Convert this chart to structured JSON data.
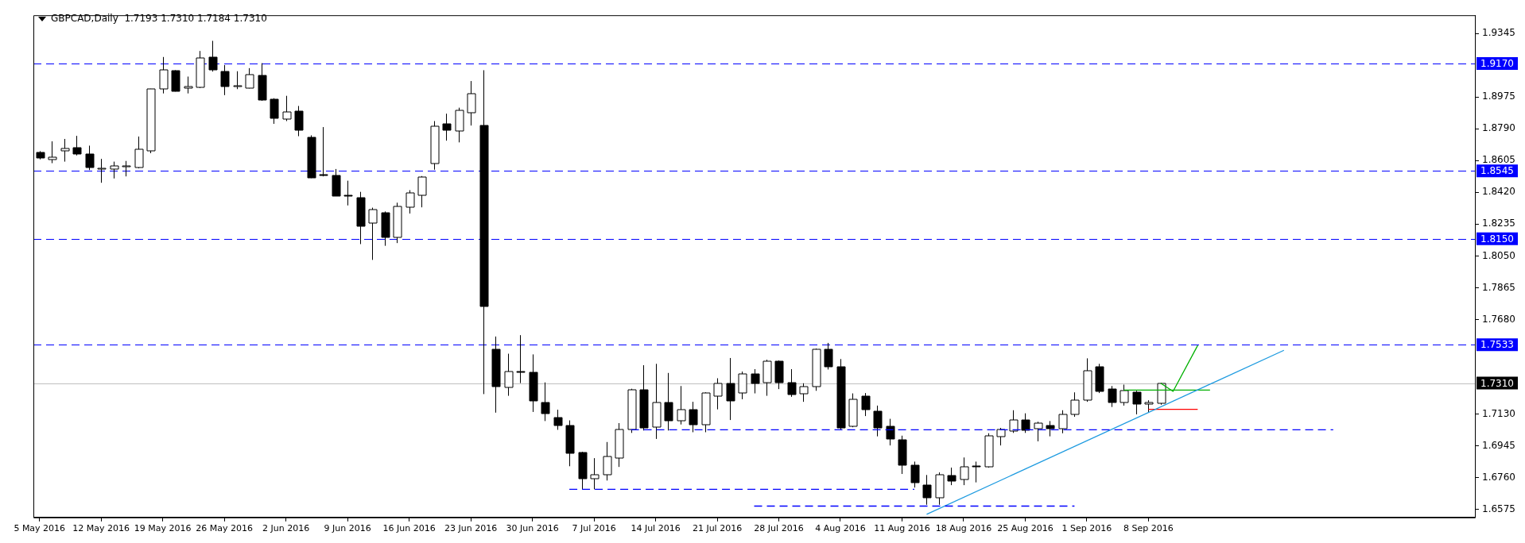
{
  "chart_data": {
    "type": "candlestick",
    "title": "GBPCAD,Daily  1.7193 1.7310 1.7184 1.7310",
    "color": "#000000",
    "categories": [
      "5 May 2016",
      null,
      null,
      null,
      null,
      "12 May 2016",
      null,
      null,
      null,
      null,
      "19 May 2016",
      null,
      null,
      null,
      null,
      "26 May 2016",
      null,
      null,
      null,
      null,
      "2 Jun 2016",
      null,
      null,
      null,
      null,
      "9 Jun 2016",
      null,
      null,
      null,
      null,
      "16 Jun 2016",
      null,
      null,
      null,
      null,
      "23 Jun 2016",
      null,
      null,
      null,
      null,
      "30 Jun 2016",
      null,
      null,
      null,
      null,
      "7 Jul 2016",
      null,
      null,
      null,
      null,
      "14 Jul 2016",
      null,
      null,
      null,
      null,
      "21 Jul 2016",
      null,
      null,
      null,
      null,
      "28 Jul 2016",
      null,
      null,
      null,
      null,
      "4 Aug 2016",
      null,
      null,
      null,
      null,
      "11 Aug 2016",
      null,
      null,
      null,
      null,
      "18 Aug 2016",
      null,
      null,
      null,
      null,
      "25 Aug 2016",
      null,
      null,
      null,
      null,
      "1 Sep 2016",
      null,
      null,
      null,
      null,
      "8 Sep 2016",
      null,
      null,
      null,
      null,
      null,
      null,
      null,
      null,
      null,
      null,
      null,
      null,
      null,
      null,
      null,
      null,
      null,
      null,
      null,
      null,
      null,
      null,
      null,
      null,
      null,
      null
    ],
    "ohlc": [
      [
        1.8652,
        1.866,
        1.8612,
        1.8619
      ],
      [
        1.8613,
        1.8717,
        1.859,
        1.8625
      ],
      [
        1.866,
        1.8731,
        1.8599,
        1.8676
      ],
      [
        1.8678,
        1.8749,
        1.8635,
        1.8643
      ],
      [
        1.8645,
        1.8692,
        1.855,
        1.8566
      ],
      [
        1.8558,
        1.8615,
        1.8476,
        1.856
      ],
      [
        1.8558,
        1.8599,
        1.8501,
        1.8576
      ],
      [
        1.857,
        1.8603,
        1.8513,
        1.8572
      ],
      [
        1.8566,
        1.8745,
        1.856,
        1.8672
      ],
      [
        1.8662,
        1.9023,
        1.8648,
        1.9021
      ],
      [
        1.9023,
        1.9208,
        1.8996,
        1.9133
      ],
      [
        1.9129,
        1.9131,
        1.9007,
        1.9011
      ],
      [
        1.9025,
        1.9094,
        1.8996,
        1.9035
      ],
      [
        1.9031,
        1.9243,
        1.9027,
        1.9202
      ],
      [
        1.9206,
        1.9302,
        1.9123,
        1.9133
      ],
      [
        1.9125,
        1.9161,
        1.8986,
        1.9035
      ],
      [
        1.9037,
        1.9125,
        1.9021,
        1.9039
      ],
      [
        1.9027,
        1.9143,
        1.9025,
        1.9104
      ],
      [
        1.91,
        1.9172,
        1.8953,
        1.8957
      ],
      [
        1.896,
        1.8968,
        1.8819,
        1.8847
      ],
      [
        1.8845,
        1.8982,
        1.8835,
        1.8888
      ],
      [
        1.8894,
        1.8923,
        1.8747,
        1.8784
      ],
      [
        1.8741,
        1.8752,
        1.8503,
        1.8505
      ],
      [
        1.8523,
        1.88,
        1.8513,
        1.8519
      ],
      [
        1.8519,
        1.8556,
        1.8399,
        1.8401
      ],
      [
        1.8405,
        1.8488,
        1.8344,
        1.8401
      ],
      [
        1.8388,
        1.8423,
        1.8119,
        1.8221
      ],
      [
        1.8244,
        1.8331,
        1.8027,
        1.8321
      ],
      [
        1.8303,
        1.8309,
        1.8109,
        1.8162
      ],
      [
        1.8158,
        1.836,
        1.8125,
        1.834
      ],
      [
        1.8333,
        1.8433,
        1.8297,
        1.8415
      ],
      [
        1.8405,
        1.8515,
        1.8333,
        1.8511
      ],
      [
        1.859,
        1.8835,
        1.8552,
        1.8805
      ],
      [
        1.8819,
        1.8878,
        1.8721,
        1.878
      ],
      [
        1.8776,
        1.8913,
        1.8711,
        1.8898
      ],
      [
        1.8884,
        1.9068,
        1.8809,
        1.8996
      ],
      [
        1.8811,
        1.9131,
        1.7246,
        1.7758
      ],
      [
        1.7507,
        1.7581,
        1.7138,
        1.7291
      ],
      [
        1.7281,
        1.7481,
        1.7236,
        1.7375
      ],
      [
        1.7377,
        1.7589,
        1.731,
        1.7375
      ],
      [
        1.7371,
        1.7477,
        1.7142,
        1.7204
      ],
      [
        1.7197,
        1.7314,
        1.7089,
        1.7134
      ],
      [
        1.711,
        1.7155,
        1.7038,
        1.7065
      ],
      [
        1.7061,
        1.7093,
        1.6826,
        1.6898
      ],
      [
        1.6904,
        1.691,
        1.6692,
        1.6751
      ],
      [
        1.6755,
        1.6873,
        1.6692,
        1.6777
      ],
      [
        1.6777,
        1.6967,
        1.6743,
        1.6885
      ],
      [
        1.6877,
        1.7077,
        1.6822,
        1.7042
      ],
      [
        1.704,
        1.7277,
        1.702,
        1.7271
      ],
      [
        1.7269,
        1.7414,
        1.7034,
        1.7049
      ],
      [
        1.7055,
        1.7422,
        1.6985,
        1.7197
      ],
      [
        1.7197,
        1.7369,
        1.7034,
        1.7089
      ],
      [
        1.7089,
        1.7293,
        1.7069,
        1.7155
      ],
      [
        1.7155,
        1.7201,
        1.7024,
        1.7065
      ],
      [
        1.7065,
        1.7256,
        1.7024,
        1.7252
      ],
      [
        1.7236,
        1.7338,
        1.7157,
        1.7309
      ],
      [
        1.7309,
        1.7456,
        1.7095,
        1.7206
      ],
      [
        1.7254,
        1.7377,
        1.7216,
        1.7363
      ],
      [
        1.7363,
        1.7391,
        1.725,
        1.7309
      ],
      [
        1.7312,
        1.7446,
        1.7236,
        1.7436
      ],
      [
        1.7436,
        1.7442,
        1.7275,
        1.7309
      ],
      [
        1.7314,
        1.7391,
        1.723,
        1.7246
      ],
      [
        1.725,
        1.7309,
        1.7201,
        1.7291
      ],
      [
        1.7291,
        1.7511,
        1.7265,
        1.7507
      ],
      [
        1.7507,
        1.7544,
        1.7389,
        1.7407
      ],
      [
        1.7403,
        1.745,
        1.7038,
        1.7049
      ],
      [
        1.7055,
        1.725,
        1.7053,
        1.7214
      ],
      [
        1.7232,
        1.7252,
        1.7118,
        1.7155
      ],
      [
        1.7148,
        1.7179,
        1.7,
        1.7049
      ],
      [
        1.7057,
        1.7102,
        1.6947,
        1.6985
      ],
      [
        1.6981,
        1.7004,
        1.6781,
        1.6832
      ],
      [
        1.6834,
        1.6853,
        1.6702,
        1.6734
      ],
      [
        1.6716,
        1.6775,
        1.6602,
        1.6643
      ],
      [
        1.6639,
        1.679,
        1.6602,
        1.6775
      ],
      [
        1.6773,
        1.6818,
        1.6716,
        1.6741
      ],
      [
        1.6749,
        1.6877,
        1.6716,
        1.6822
      ],
      [
        1.6826,
        1.6853,
        1.6732,
        1.6822
      ],
      [
        1.6822,
        1.7018,
        1.6818,
        1.7002
      ],
      [
        1.6998,
        1.7049,
        1.6947,
        1.7038
      ],
      [
        1.7034,
        1.7152,
        1.702,
        1.7097
      ],
      [
        1.7097,
        1.7134,
        1.702,
        1.7038
      ],
      [
        1.7044,
        1.7085,
        1.6971,
        1.7075
      ],
      [
        1.7061,
        1.7089,
        1.7,
        1.7042
      ],
      [
        1.7044,
        1.7152,
        1.7018,
        1.7128
      ],
      [
        1.7128,
        1.7256,
        1.7114,
        1.721
      ],
      [
        1.7212,
        1.7454,
        1.7201,
        1.7381
      ],
      [
        1.7403,
        1.7422,
        1.7252,
        1.7261
      ],
      [
        1.7277,
        1.7293,
        1.7171,
        1.7197
      ],
      [
        1.7197,
        1.7301,
        1.7179,
        1.7265
      ],
      [
        1.7256,
        1.7265,
        1.7128,
        1.7187
      ],
      [
        1.7185,
        1.721,
        1.7138,
        1.7195
      ],
      [
        1.7193,
        1.731,
        1.7184,
        1.731
      ],
      null,
      null,
      null,
      null,
      null,
      null,
      null,
      null,
      null,
      null,
      null,
      null,
      null,
      null,
      null,
      null,
      null,
      null,
      null,
      null,
      null,
      null,
      null,
      null,
      null
    ],
    "series": [
      {
        "type": "line",
        "color": "#0000ff",
        "line_style": "dashed",
        "values": [
          null,
          null,
          null,
          null,
          null,
          null,
          null,
          null,
          null,
          null,
          null,
          null,
          null,
          null,
          null,
          null,
          null,
          null,
          null,
          null,
          null,
          null,
          null,
          null,
          null,
          null,
          null,
          null,
          null,
          null,
          null,
          null,
          null,
          null,
          null,
          null,
          null,
          null,
          null,
          null,
          null,
          null,
          null,
          null,
          null,
          null,
          null,
          null,
          1.7038,
          null,
          null,
          null,
          null,
          null,
          null,
          null,
          null,
          null,
          null,
          null,
          null,
          null,
          null,
          null,
          null,
          null,
          null,
          null,
          null,
          null,
          null,
          null,
          null,
          null,
          null,
          null,
          null,
          null,
          null,
          null,
          null,
          null,
          null,
          null,
          null,
          null,
          null,
          null,
          null,
          null,
          null,
          null,
          null,
          null,
          null,
          null,
          null,
          null,
          null,
          null,
          null,
          null,
          null,
          null,
          null,
          1.7038,
          null,
          null,
          null,
          null,
          null,
          null,
          null,
          null,
          null,
          null,
          null
        ]
      },
      {
        "type": "line",
        "color": "#0000ff",
        "line_style": "dashed",
        "values": [
          null,
          null,
          null,
          null,
          null,
          null,
          null,
          null,
          null,
          null,
          null,
          null,
          null,
          null,
          null,
          null,
          null,
          null,
          null,
          null,
          null,
          null,
          null,
          null,
          null,
          null,
          null,
          null,
          null,
          null,
          null,
          null,
          null,
          null,
          null,
          null,
          null,
          null,
          null,
          null,
          null,
          null,
          null,
          1.6692,
          null,
          null,
          null,
          null,
          null,
          null,
          null,
          null,
          null,
          null,
          null,
          null,
          null,
          null,
          null,
          null,
          null,
          null,
          null,
          null,
          null,
          null,
          null,
          null,
          null,
          null,
          null,
          1.6692,
          null,
          null,
          null,
          null,
          null,
          null,
          null,
          null,
          null,
          null,
          null,
          null,
          null,
          null,
          null,
          null,
          null,
          null,
          null,
          null,
          null,
          null,
          null,
          null,
          null,
          null,
          null,
          null,
          null,
          null,
          null,
          null,
          null,
          null,
          null,
          null,
          null,
          null,
          null,
          null,
          null,
          null,
          null,
          null,
          null
        ]
      },
      {
        "type": "line",
        "color": "#0000ff",
        "line_style": "dashed",
        "values": [
          null,
          null,
          null,
          null,
          null,
          null,
          null,
          null,
          null,
          null,
          null,
          null,
          null,
          null,
          null,
          null,
          null,
          null,
          null,
          null,
          null,
          null,
          null,
          null,
          null,
          null,
          null,
          null,
          null,
          null,
          null,
          null,
          null,
          null,
          null,
          null,
          null,
          null,
          null,
          null,
          null,
          null,
          null,
          null,
          null,
          null,
          null,
          null,
          null,
          null,
          null,
          null,
          null,
          null,
          null,
          null,
          null,
          null,
          1.6594,
          null,
          null,
          null,
          null,
          null,
          null,
          null,
          null,
          null,
          null,
          null,
          null,
          null,
          null,
          null,
          null,
          null,
          null,
          null,
          null,
          null,
          null,
          null,
          null,
          null,
          1.6594,
          null,
          null,
          null,
          null,
          null,
          null,
          null,
          null,
          null,
          null,
          null,
          null,
          null,
          null,
          null,
          null,
          null,
          null,
          null,
          null,
          null,
          null,
          null,
          null,
          null,
          null,
          null,
          null,
          null,
          null,
          null,
          null
        ]
      },
      {
        "type": "line",
        "color": "#1e9be0",
        "line_style": "solid",
        "values": [
          null,
          null,
          null,
          null,
          null,
          null,
          null,
          null,
          null,
          null,
          null,
          null,
          null,
          null,
          null,
          null,
          null,
          null,
          null,
          null,
          null,
          null,
          null,
          null,
          null,
          null,
          null,
          null,
          null,
          null,
          null,
          null,
          null,
          null,
          null,
          null,
          null,
          null,
          null,
          null,
          null,
          null,
          null,
          null,
          null,
          null,
          null,
          null,
          null,
          null,
          null,
          null,
          null,
          null,
          null,
          null,
          null,
          null,
          null,
          null,
          null,
          null,
          null,
          null,
          null,
          null,
          null,
          null,
          null,
          null,
          null,
          null,
          1.6546,
          null,
          null,
          null,
          null,
          null,
          null,
          null,
          null,
          null,
          null,
          null,
          null,
          null,
          null,
          null,
          null,
          null,
          null,
          null,
          null,
          null,
          null,
          null,
          null,
          null,
          null,
          null,
          null,
          1.7501,
          null,
          null,
          null,
          null,
          null,
          null,
          null,
          null,
          null,
          null,
          null,
          null,
          null,
          null,
          null
        ]
      },
      {
        "type": "line",
        "color": "#00b000",
        "line_style": "solid",
        "values": [
          null,
          null,
          null,
          null,
          null,
          null,
          null,
          null,
          null,
          null,
          null,
          null,
          null,
          null,
          null,
          null,
          null,
          null,
          null,
          null,
          null,
          null,
          null,
          null,
          null,
          null,
          null,
          null,
          null,
          null,
          null,
          null,
          null,
          null,
          null,
          null,
          null,
          null,
          null,
          null,
          null,
          null,
          null,
          null,
          null,
          null,
          null,
          null,
          null,
          null,
          null,
          null,
          null,
          null,
          null,
          null,
          null,
          null,
          null,
          null,
          null,
          null,
          null,
          null,
          null,
          null,
          null,
          null,
          null,
          null,
          null,
          null,
          null,
          null,
          null,
          null,
          null,
          null,
          null,
          null,
          null,
          null,
          null,
          null,
          null,
          null,
          null,
          null,
          1.7269,
          null,
          null,
          null,
          null,
          null,
          null,
          1.7269,
          null,
          null,
          null,
          null,
          null,
          null,
          null,
          null,
          null,
          null,
          null,
          null,
          null,
          null,
          null,
          null,
          null,
          null,
          null,
          null,
          null
        ]
      },
      {
        "type": "line",
        "color": "#00b000",
        "line_style": "solid",
        "values": [
          null,
          null,
          null,
          null,
          null,
          null,
          null,
          null,
          null,
          null,
          null,
          null,
          null,
          null,
          null,
          null,
          null,
          null,
          null,
          null,
          null,
          null,
          null,
          null,
          null,
          null,
          null,
          null,
          null,
          null,
          null,
          null,
          null,
          null,
          null,
          null,
          null,
          null,
          null,
          null,
          null,
          null,
          null,
          null,
          null,
          null,
          null,
          null,
          null,
          null,
          null,
          null,
          null,
          null,
          null,
          null,
          null,
          null,
          null,
          null,
          null,
          null,
          null,
          null,
          null,
          null,
          null,
          null,
          null,
          null,
          null,
          null,
          null,
          null,
          null,
          null,
          null,
          null,
          null,
          null,
          null,
          null,
          null,
          null,
          null,
          null,
          null,
          null,
          null,
          null,
          null,
          1.7309,
          1.7262,
          null,
          1.7529,
          null,
          null,
          null,
          null,
          null,
          null,
          null,
          null,
          null,
          null,
          null,
          null,
          null,
          null,
          null,
          null,
          null,
          null,
          null,
          null,
          null,
          null
        ]
      },
      {
        "type": "line",
        "color": "#ff0000",
        "line_style": "solid",
        "values": [
          null,
          null,
          null,
          null,
          null,
          null,
          null,
          null,
          null,
          null,
          null,
          null,
          null,
          null,
          null,
          null,
          null,
          null,
          null,
          null,
          null,
          null,
          null,
          null,
          null,
          null,
          null,
          null,
          null,
          null,
          null,
          null,
          null,
          null,
          null,
          null,
          null,
          null,
          null,
          null,
          null,
          null,
          null,
          null,
          null,
          null,
          null,
          null,
          null,
          null,
          null,
          null,
          null,
          null,
          null,
          null,
          null,
          null,
          null,
          null,
          null,
          null,
          null,
          null,
          null,
          null,
          null,
          null,
          null,
          null,
          null,
          null,
          null,
          null,
          null,
          null,
          null,
          null,
          null,
          null,
          null,
          null,
          null,
          null,
          null,
          null,
          null,
          null,
          null,
          null,
          1.7157,
          null,
          null,
          null,
          1.7157,
          null,
          null,
          null,
          null,
          null,
          null,
          null,
          null,
          null,
          null,
          null,
          null,
          null,
          null,
          null,
          null,
          null,
          null,
          null,
          null,
          null,
          null
        ]
      }
    ],
    "ref_lines": [
      {
        "axis": "y",
        "value": 1.917,
        "label": "1.9170",
        "color": "#0000ff",
        "line_style": "dashed"
      },
      {
        "axis": "y",
        "value": 1.8545,
        "label": "1.8545",
        "color": "#0000ff",
        "line_style": "dashed"
      },
      {
        "axis": "y",
        "value": 1.815,
        "label": "1.8150",
        "color": "#0000ff",
        "line_style": "dashed"
      },
      {
        "axis": "y",
        "value": 1.7533,
        "label": "1.7533",
        "color": "#0000ff",
        "line_style": "dashed"
      },
      {
        "axis": "y",
        "value": 1.731,
        "label": "1.7310",
        "color": "#c0c0c0",
        "line_style": "solid"
      }
    ],
    "ylim": [
      1.6528,
      1.9451
    ],
    "yticks": [
      1.9345,
      1.8975,
      {
        "value": 1.879,
        "label": "1.8790"
      },
      1.8605,
      {
        "value": 1.842,
        "label": "1.8420"
      },
      1.8235,
      {
        "value": 1.805,
        "label": "1.8050"
      },
      1.7865,
      {
        "value": 1.768,
        "label": "1.7680"
      },
      {
        "value": 1.713,
        "label": "1.7130"
      },
      1.6945,
      {
        "value": 1.676,
        "label": "1.6760"
      },
      1.6575
    ],
    "legend": false,
    "grid": false,
    "marker": "none"
  }
}
